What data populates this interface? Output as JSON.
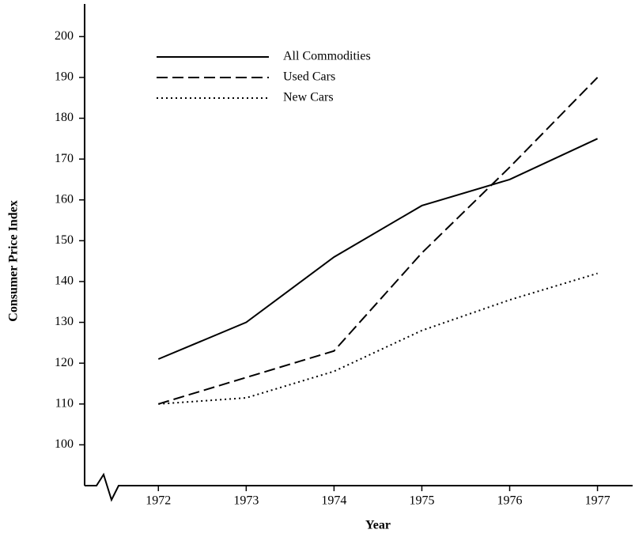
{
  "chart_data": {
    "type": "line",
    "x_label": "Year",
    "y_label": "Consumer Price Index",
    "x": [
      1972,
      1973,
      1974,
      1975,
      1976,
      1977
    ],
    "series": [
      {
        "name": "All Commodities",
        "color": "#000000",
        "style": "solid",
        "values": [
          121,
          130,
          146,
          158.6,
          165,
          175
        ]
      },
      {
        "name": "Used Cars",
        "color": "#000000",
        "style": "dashed",
        "values": [
          110,
          116.5,
          123,
          147,
          168,
          190
        ]
      },
      {
        "name": "New Cars",
        "color": "#000000",
        "style": "dotted",
        "values": [
          110,
          111.5,
          118,
          128,
          135.5,
          142
        ]
      }
    ],
    "xlim": [
      1971.16,
      1977.4
    ],
    "xticks": [
      1972,
      1973,
      1974,
      1975,
      1976,
      1977
    ],
    "ylim": [
      90,
      208
    ],
    "yticks": [
      100,
      110,
      120,
      130,
      140,
      150,
      160,
      170,
      180,
      190,
      200
    ],
    "grid": false,
    "legend": "upper left"
  }
}
